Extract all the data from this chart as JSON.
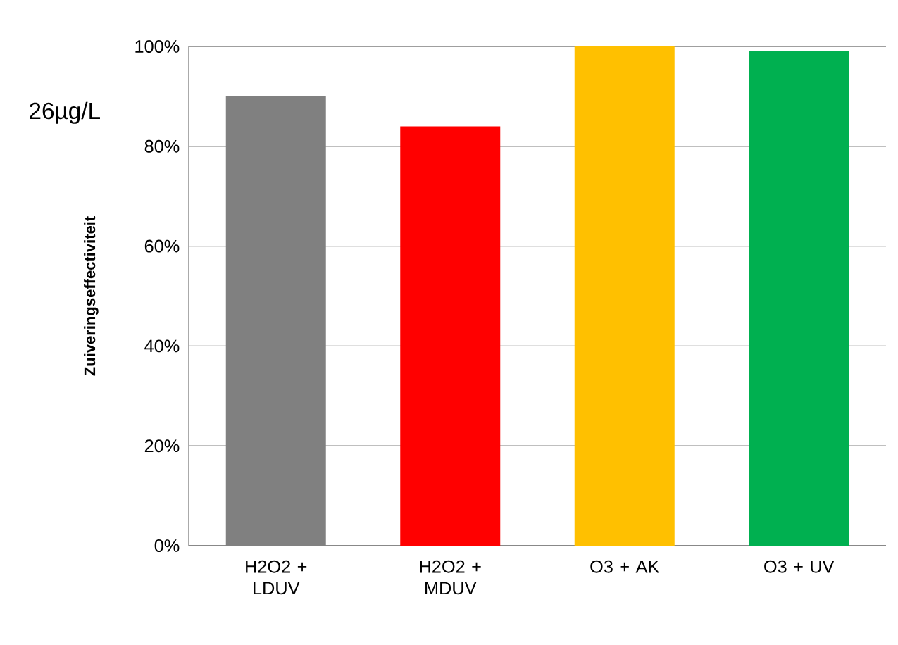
{
  "chart_data": {
    "type": "bar",
    "ylabel": "Zuiveringseffectiviteit",
    "categories": [
      "H2O2 + LDUV",
      "H2O2 + MDUV",
      "O3 + AK",
      "O3 + UV"
    ],
    "values": [
      90,
      84,
      100,
      99
    ],
    "colors": [
      "#808080",
      "#ff0000",
      "#ffc000",
      "#00b050"
    ],
    "ylim": [
      0,
      100
    ],
    "yticks": [
      {
        "value": 0,
        "label": "0%"
      },
      {
        "value": 20,
        "label": "20%"
      },
      {
        "value": 40,
        "label": "40%"
      },
      {
        "value": 60,
        "label": "60%"
      },
      {
        "value": 80,
        "label": "80%"
      },
      {
        "value": 100,
        "label": "100%"
      }
    ],
    "grid": "y",
    "annotations": [
      "26µg/L"
    ]
  }
}
